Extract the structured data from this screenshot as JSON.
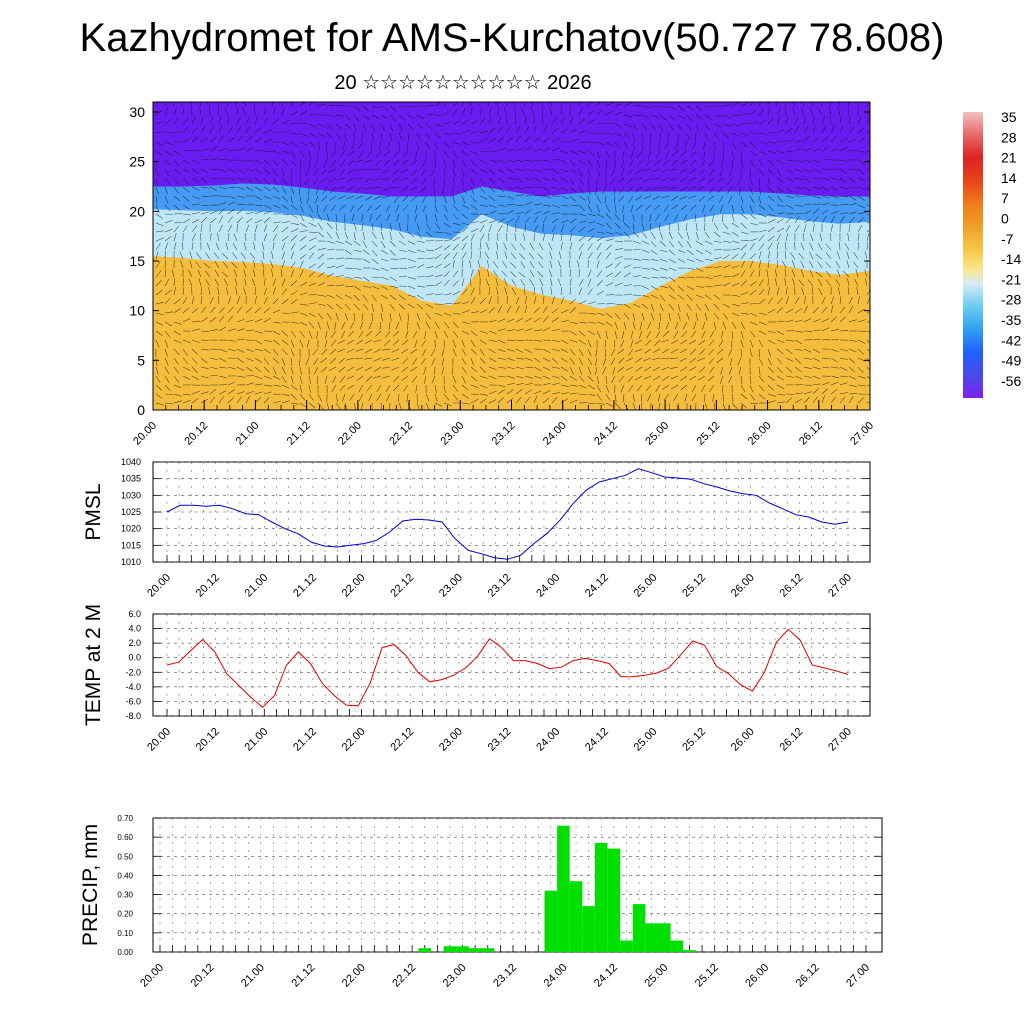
{
  "header": {
    "title": "Kazhydromet for AMS-Kurchatov(50.727 78.608)",
    "subtitle": "20 ☆☆☆☆☆☆☆☆☆☆ 2026"
  },
  "time_ticks": [
    "20.00",
    "20.12",
    "21.00",
    "21.12",
    "22.00",
    "22.12",
    "23.00",
    "23.12",
    "24.00",
    "24.12",
    "25.00",
    "25.12",
    "26.00",
    "26.12",
    "27.00"
  ],
  "colors": {
    "pmsl_line": "#0000cc",
    "temp_line": "#e00000",
    "precip_bar": "#00e000",
    "cold": "#6a1cf0",
    "warm": "#f0b030"
  },
  "chart_data": [
    {
      "type": "heatmap",
      "name": "cross-section",
      "description_axis": "height index",
      "y_ticks": [
        "0",
        "5",
        "10",
        "15",
        "20",
        "25",
        "30"
      ],
      "ylim": [
        0,
        31
      ],
      "colorbar": {
        "labels": [
          "35",
          "28",
          "21",
          "14",
          "7",
          "0",
          "-7",
          "-14",
          "-21",
          "-28",
          "-35",
          "-42",
          "-49",
          "-56"
        ],
        "colors": [
          "#f2b6b6",
          "#e86a6a",
          "#dd2222",
          "#e8451a",
          "#f07a1a",
          "#f0a028",
          "#f6c648",
          "#fbe78e",
          "#d6ecf4",
          "#6ecbf0",
          "#2fa0f0",
          "#2060ff",
          "#4a4ae8",
          "#7a22f0"
        ]
      },
      "freezing_boundary_height": [
        15.5,
        15.3,
        15.0,
        14.9,
        14.7,
        14.3,
        13.5,
        13.0,
        12.5,
        11.0,
        10.5,
        14.5,
        12.5,
        11.6,
        11.0,
        10.2,
        10.8,
        12.5,
        14.0,
        15.0,
        15.0,
        14.6,
        14.0,
        13.6,
        14.0
      ],
      "cold_boundary_height": [
        22.5,
        22.5,
        22.6,
        22.8,
        22.7,
        22.4,
        22.0,
        21.8,
        21.5,
        21.5,
        21.5,
        22.5,
        22.0,
        21.5,
        21.8,
        22.0,
        22.0,
        22.0,
        22.0,
        22.0,
        22.0,
        21.8,
        21.6,
        21.5,
        21.5
      ]
    },
    {
      "type": "line",
      "name": "PMSL",
      "ylabel": "PMSL",
      "y_ticks": [
        "1040",
        "1035",
        "1030",
        "1025",
        "1020",
        "1015",
        "1010"
      ],
      "ylim": [
        1010,
        1040
      ],
      "values": [
        1025,
        1027,
        1027,
        1026.7,
        1027,
        1026,
        1024.5,
        1024.2,
        1022,
        1020,
        1018.5,
        1016,
        1014.8,
        1014.5,
        1015,
        1015.5,
        1016.5,
        1019,
        1022.3,
        1022.8,
        1022.6,
        1022,
        1017,
        1013.5,
        1012.5,
        1011.3,
        1010.8,
        1012,
        1015.5,
        1018.5,
        1022.5,
        1027.5,
        1031.5,
        1034,
        1035,
        1036,
        1038,
        1036.8,
        1035.5,
        1035.2,
        1034.8,
        1033.5,
        1032.5,
        1031.3,
        1030.5,
        1030,
        1027.7,
        1026,
        1024.2,
        1023.5,
        1022,
        1021.3,
        1022
      ]
    },
    {
      "type": "line",
      "name": "TEMP at 2 M",
      "ylabel": "TEMP at 2 M",
      "y_ticks": [
        "6.0",
        "4.0",
        "2.0",
        "0.0",
        "-2.0",
        "-4.0",
        "-6.0",
        "-8.0"
      ],
      "ylim": [
        -8,
        6
      ],
      "values": [
        -1.0,
        -0.6,
        1.0,
        2.5,
        0.8,
        -2.2,
        -3.8,
        -5.4,
        -6.8,
        -5.2,
        -1.0,
        0.8,
        -0.8,
        -3.5,
        -5.2,
        -6.5,
        -6.6,
        -3.5,
        1.4,
        1.8,
        0.3,
        -2.0,
        -3.3,
        -3.0,
        -2.4,
        -1.4,
        0.2,
        2.6,
        1.4,
        -0.4,
        -0.4,
        -0.8,
        -1.5,
        -1.3,
        -0.4,
        -0.1,
        -0.4,
        -0.8,
        -2.6,
        -2.6,
        -2.4,
        -2.1,
        -1.4,
        0.4,
        2.3,
        1.7,
        -1.2,
        -2.2,
        -3.7,
        -4.6,
        -2.0,
        2.1,
        3.9,
        2.4,
        -1.0,
        -1.4,
        -1.8,
        -2.3
      ]
    },
    {
      "type": "bar",
      "name": "PRECIP, mm",
      "ylabel": "PRECIP, mm",
      "y_ticks": [
        "0.70",
        "0.60",
        "0.50",
        "0.40",
        "0.30",
        "0.20",
        "0.10",
        "0.00"
      ],
      "ylim": [
        0,
        0.7
      ],
      "bars": [
        {
          "t": 21.0,
          "v": 0.02
        },
        {
          "t": 23.0,
          "v": 0.03
        },
        {
          "t": 24.0,
          "v": 0.03
        },
        {
          "t": 25.0,
          "v": 0.02
        },
        {
          "t": 26.0,
          "v": 0.02
        },
        {
          "t": 31.0,
          "v": 0.32
        },
        {
          "t": 32.0,
          "v": 0.66
        },
        {
          "t": 33.0,
          "v": 0.37
        },
        {
          "t": 34.0,
          "v": 0.24
        },
        {
          "t": 35.0,
          "v": 0.57
        },
        {
          "t": 36.0,
          "v": 0.54
        },
        {
          "t": 37.0,
          "v": 0.06
        },
        {
          "t": 38.0,
          "v": 0.25
        },
        {
          "t": 39.0,
          "v": 0.15
        },
        {
          "t": 40.0,
          "v": 0.15
        },
        {
          "t": 41.0,
          "v": 0.06
        },
        {
          "t": 42.0,
          "v": 0.01
        }
      ]
    }
  ]
}
